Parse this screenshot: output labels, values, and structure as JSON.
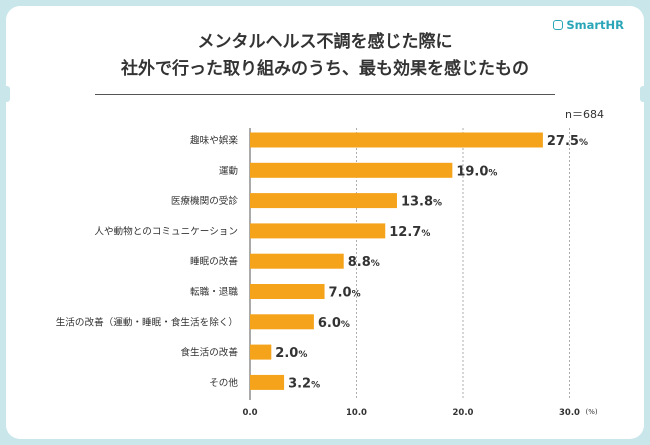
{
  "header": {
    "brand": "SmartHR",
    "title_line1": "メンタルヘルス不調を感じた際に",
    "title_line2": "社外で行った取り組みのうち、最も効果を感じたもの",
    "sample_size": "n＝684"
  },
  "chart_data": {
    "type": "bar",
    "orientation": "horizontal",
    "title": "メンタルヘルス不調を感じた際に社外で行った取り組みのうち、最も効果を感じたもの",
    "categories": [
      "趣味や娯楽",
      "運動",
      "医療機関の受診",
      "人や動物とのコミュニケーション",
      "睡眠の改善",
      "転職・退職",
      "生活の改善（運動・睡眠・食生活を除く）",
      "食生活の改善",
      "その他"
    ],
    "values": [
      27.5,
      19.0,
      13.8,
      12.7,
      8.8,
      7.0,
      6.0,
      2.0,
      3.2
    ],
    "value_labels": [
      "27.5",
      "19.0",
      "13.8",
      "12.7",
      "8.8",
      "7.0",
      "6.0",
      "2.0",
      "3.2"
    ],
    "value_suffix": "%",
    "xlim": [
      0,
      30
    ],
    "x_ticks": [
      "0.0",
      "10.0",
      "20.0",
      "30.0"
    ],
    "x_unit": "(%)",
    "bar_color": "#f5a31a",
    "grid": "dashed vertical at 10, 20, 30"
  }
}
